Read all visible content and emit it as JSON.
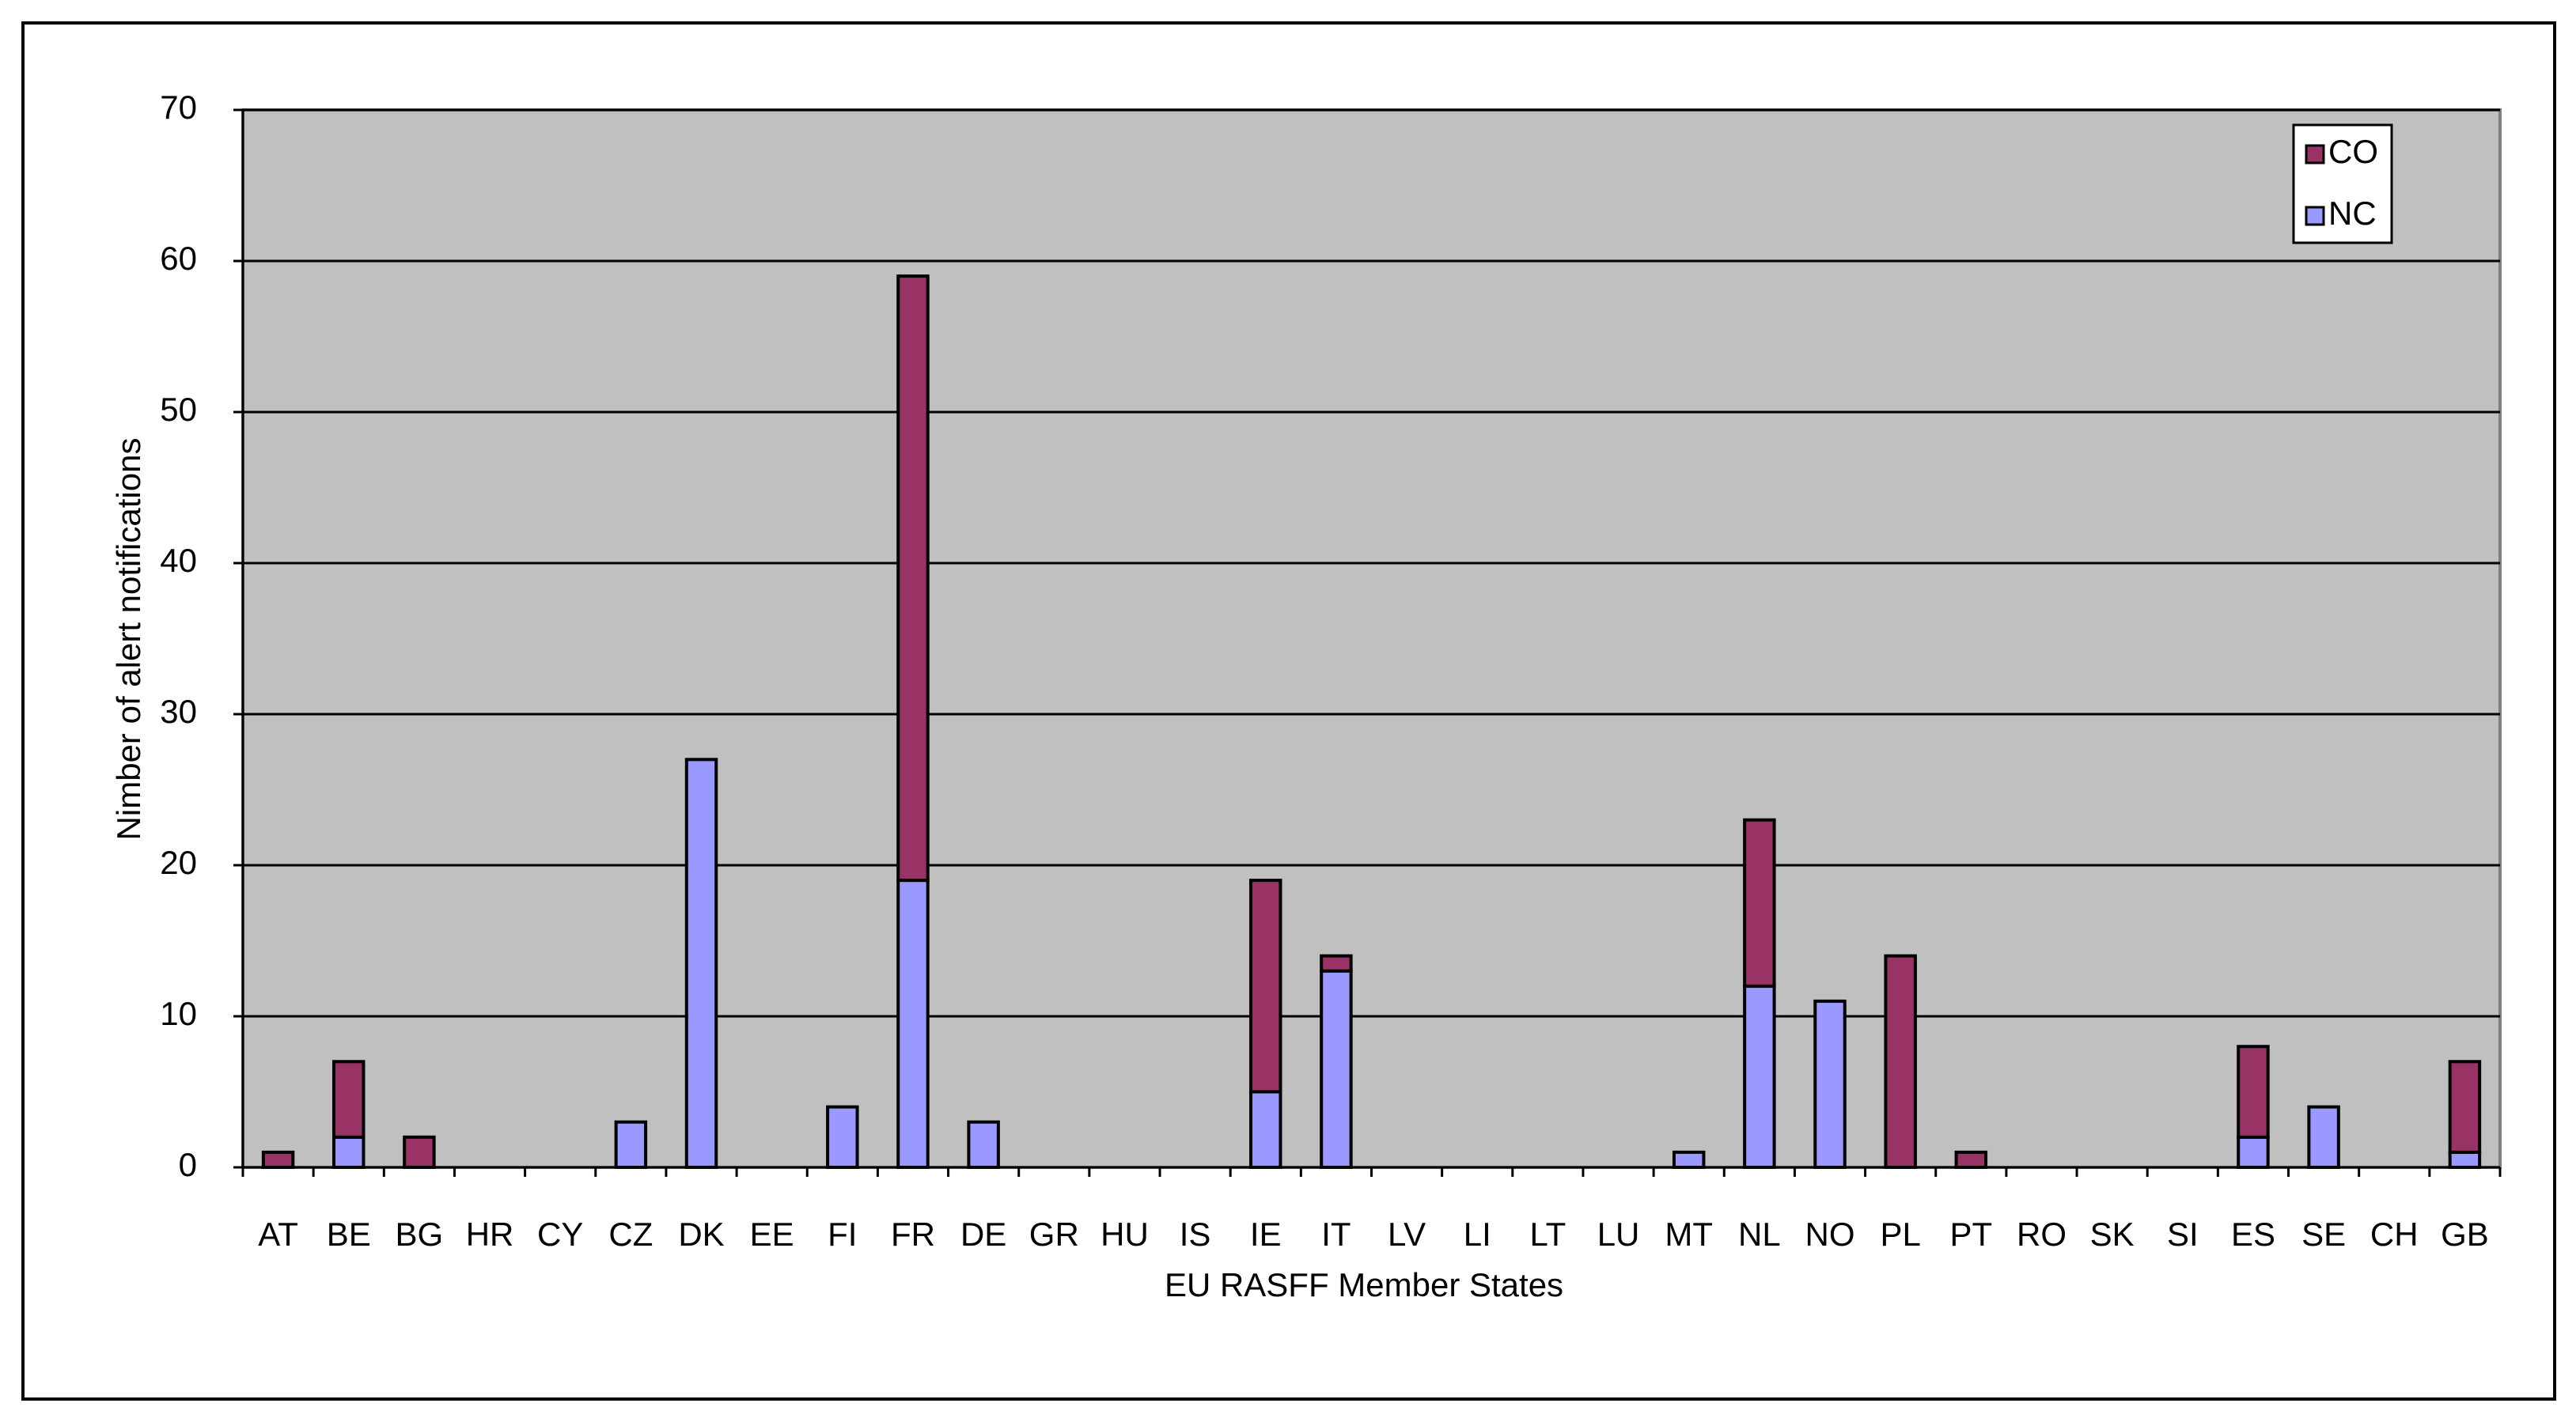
{
  "chart_data": {
    "type": "stacked_bar",
    "x_label": "EU RASFF Member States",
    "y_label": "Nimber of alert notifications",
    "categories": [
      "AT",
      "BE",
      "BG",
      "HR",
      "CY",
      "CZ",
      "DK",
      "EE",
      "FI",
      "FR",
      "DE",
      "GR",
      "HU",
      "IS",
      "IE",
      "IT",
      "LV",
      "LI",
      "LT",
      "LU",
      "MT",
      "NL",
      "NO",
      "PL",
      "PT",
      "RO",
      "SK",
      "SI",
      "ES",
      "SE",
      "CH",
      "GB"
    ],
    "series": [
      {
        "name": "NC",
        "color": "#9999ff",
        "values": [
          0,
          2,
          0,
          0,
          0,
          3,
          27,
          0,
          4,
          19,
          3,
          0,
          0,
          0,
          5,
          13,
          0,
          0,
          0,
          0,
          1,
          12,
          11,
          0,
          0,
          0,
          0,
          0,
          2,
          4,
          0,
          1
        ]
      },
      {
        "name": "CO",
        "color": "#993366",
        "values": [
          1,
          5,
          2,
          0,
          0,
          0,
          0,
          0,
          0,
          40,
          0,
          0,
          0,
          0,
          14,
          1,
          0,
          0,
          0,
          0,
          0,
          11,
          0,
          14,
          1,
          0,
          0,
          0,
          6,
          0,
          0,
          6
        ]
      }
    ],
    "ylim": [
      0,
      70
    ],
    "yticks": [
      0,
      10,
      20,
      30,
      40,
      50,
      60,
      70
    ],
    "grid": true,
    "legend": "top-right",
    "plot_background": "#c0c0c0"
  }
}
